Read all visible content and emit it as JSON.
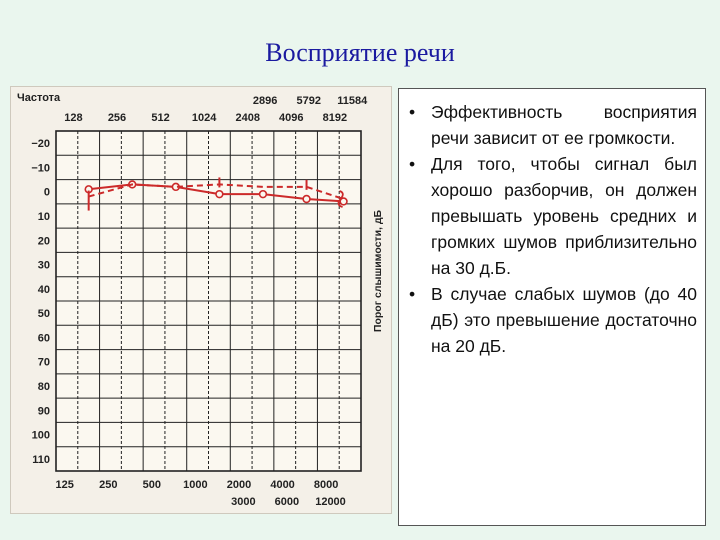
{
  "slide": {
    "title": "Восприятие речи"
  },
  "audiogram": {
    "freq_label": "Частота",
    "top_row_1": [
      "128",
      "256",
      "512",
      "1024",
      "2408",
      "4096",
      "8192"
    ],
    "top_row_2": [
      "2896",
      "5792",
      "11584"
    ],
    "bottom_row_1": [
      "125",
      "250",
      "500",
      "1000",
      "2000",
      "4000",
      "8000"
    ],
    "bottom_row_2": [
      "3000",
      "6000",
      "12000"
    ],
    "y_ticks": [
      "−20",
      "−10",
      "0",
      "10",
      "20",
      "30",
      "40",
      "50",
      "60",
      "70",
      "80",
      "90",
      "100",
      "110"
    ],
    "y_axis_title": "Порог слышимости, дБ",
    "line_color": "#cc2a2a",
    "solid_curve_db": [
      -1,
      -3,
      -2,
      1,
      1,
      3,
      4
    ],
    "dashed_curve_db": [
      2,
      -3,
      -2,
      -3,
      -2,
      -2,
      3
    ]
  },
  "bullets": [
    "Эффективность восприятия речи зависит от ее громкости.",
    "Для того, чтобы сигнал был хорошо разборчив, он должен превышать уровень средних и громких шумов приблизительно на 30 д.Б.",
    "В случае слабых шумов (до 40 дБ) это превышение достаточно на 20 дБ."
  ],
  "bullet_symbol": "•"
}
